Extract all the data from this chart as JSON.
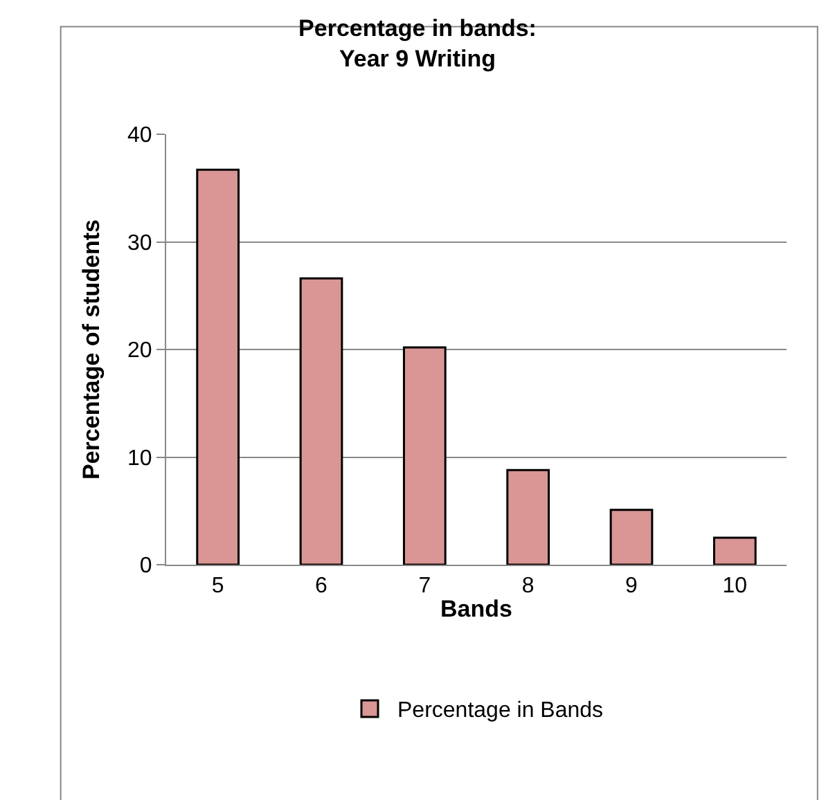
{
  "chart_data": {
    "type": "bar",
    "title": "Percentage in bands:\nYear 9 Writing",
    "xlabel": "Bands",
    "ylabel": "Percentage of students",
    "categories": [
      "5",
      "6",
      "7",
      "8",
      "9",
      "10"
    ],
    "series": [
      {
        "name": "Percentage in Bands",
        "color": "#d99694",
        "values": [
          36.7,
          26.6,
          20.2,
          8.8,
          5.1,
          2.5
        ]
      }
    ],
    "ylim": [
      0,
      40
    ],
    "yticks": [
      0,
      10,
      20,
      30,
      40
    ],
    "grid": "y",
    "legend": "bottom"
  }
}
